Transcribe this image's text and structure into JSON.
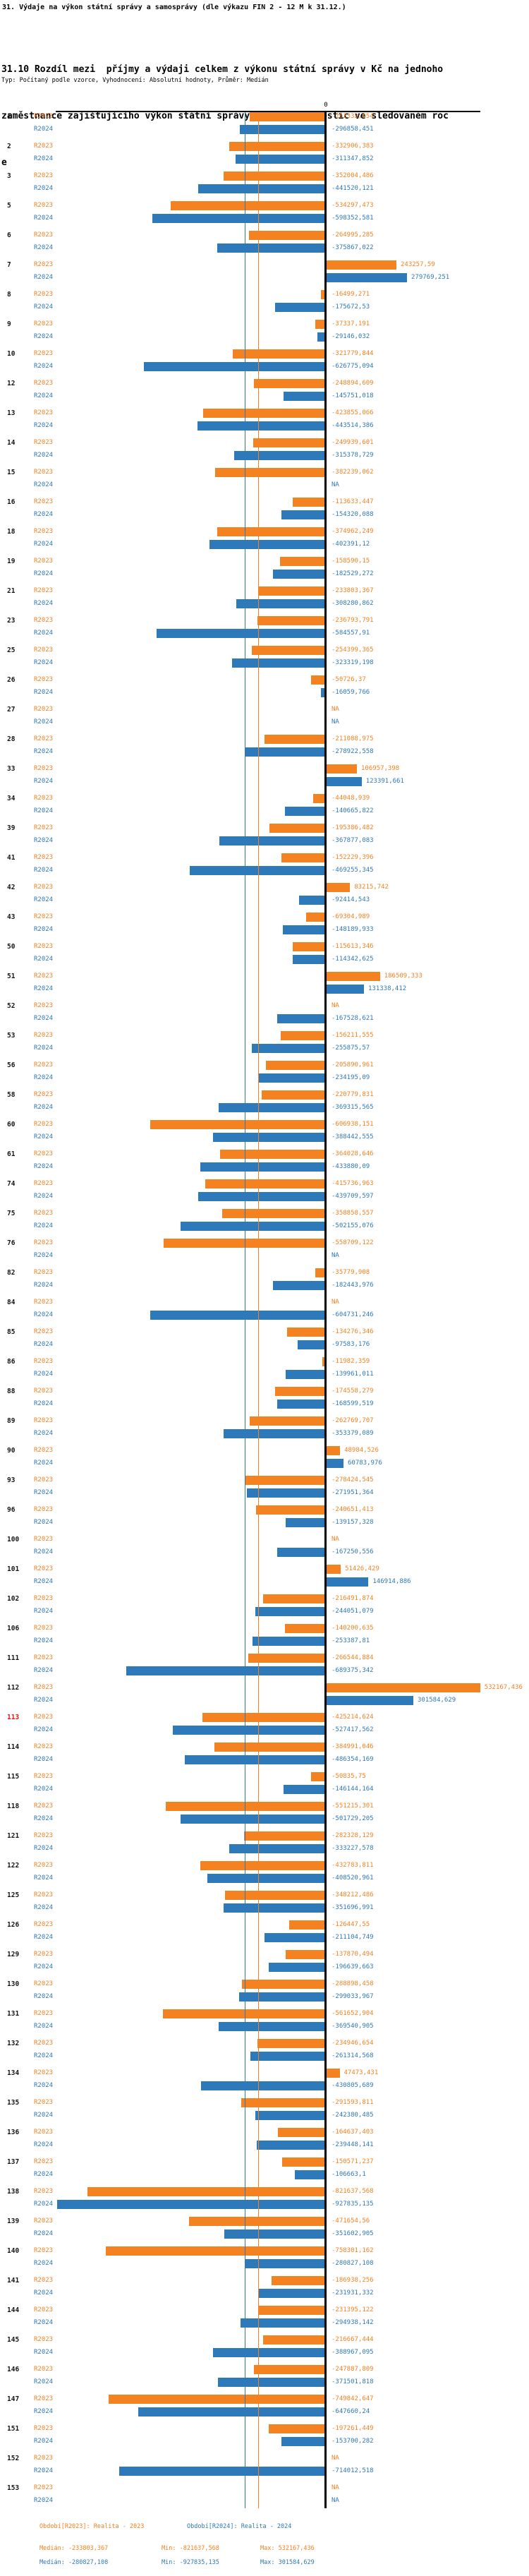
{
  "title": "31. Výdaje na výkon státní správy a samosprávy (dle výkazu FIN 2 - 12 M k 31.12.)",
  "subtitle_lines": [
    "31.10 Rozdíl mezi  příjmy a výdaji celkem z výkonu státní správy v Kč na jednoho",
    "zaměstnance zajišťujícího výkon státní správy - včetně investic ve sledovaném roc",
    "e"
  ],
  "meta_line": "Typ: Počítaný podle vzorce, Vyhodnocení: Absolutní hodnoty, Průměr: Medián",
  "axis": {
    "zero_label": "0"
  },
  "colors": {
    "r2023": "#F58220",
    "r2024": "#2E79B9",
    "highlight_row": "#EE1111",
    "axis": "#000000"
  },
  "chart_data": {
    "type": "bar",
    "orientation": "horizontal",
    "unit": "Kč",
    "na_label": "NA",
    "highlighted_row_id": "113",
    "series": [
      {
        "key": "r2023",
        "label": "R2023",
        "period": "Realita - 2023"
      },
      {
        "key": "r2024",
        "label": "R2024",
        "period": "Realita - 2024"
      }
    ],
    "reference_lines": [
      {
        "series": "r2024",
        "type": "median",
        "value": -280827.108
      },
      {
        "series": "r2023",
        "type": "median",
        "value": -233803.367
      }
    ],
    "stats": {
      "r2023": {
        "median": -233803.367,
        "min": -821637.568,
        "max": 532167.436
      },
      "r2024": {
        "median": -280827.108,
        "min": -927835.135,
        "max": 301584.629
      }
    },
    "rows": [
      {
        "id": "1",
        "r2023": -263332.454,
        "r2024": -296858.451
      },
      {
        "id": "2",
        "r2023": -332906.383,
        "r2024": -311347.852
      },
      {
        "id": "3",
        "r2023": -352004.486,
        "r2024": -441520.121
      },
      {
        "id": "5",
        "r2023": -534297.473,
        "r2024": -598352.581
      },
      {
        "id": "6",
        "r2023": -264995.285,
        "r2024": -375867.022
      },
      {
        "id": "7",
        "r2023": 243257.59,
        "r2024": 279769.251
      },
      {
        "id": "8",
        "r2023": -16499.271,
        "r2024": -175672.53
      },
      {
        "id": "9",
        "r2023": -37337.191,
        "r2024": -29146.032
      },
      {
        "id": "10",
        "r2023": -321779.844,
        "r2024": -626775.094
      },
      {
        "id": "12",
        "r2023": -248894.609,
        "r2024": -145751.018
      },
      {
        "id": "13",
        "r2023": -423855.066,
        "r2024": -443514.386
      },
      {
        "id": "14",
        "r2023": -249939.601,
        "r2024": -315378.729
      },
      {
        "id": "15",
        "r2023": -382239.062,
        "r2024": null
      },
      {
        "id": "16",
        "r2023": -113633.447,
        "r2024": -154320.088
      },
      {
        "id": "18",
        "r2023": -374962.249,
        "r2024": -402391.12
      },
      {
        "id": "19",
        "r2023": -158590.15,
        "r2024": -182529.272
      },
      {
        "id": "21",
        "r2023": -233803.367,
        "r2024": -308280.862
      },
      {
        "id": "23",
        "r2023": -236793.791,
        "r2024": -584557.91
      },
      {
        "id": "25",
        "r2023": -254399.365,
        "r2024": -323319.198
      },
      {
        "id": "26",
        "r2023": -50726.37,
        "r2024": -16059.766
      },
      {
        "id": "27",
        "r2023": null,
        "r2024": null
      },
      {
        "id": "28",
        "r2023": -211088.975,
        "r2024": -278922.558
      },
      {
        "id": "33",
        "r2023": 106957.398,
        "r2024": 123391.661
      },
      {
        "id": "34",
        "r2023": -44048.939,
        "r2024": -140665.822
      },
      {
        "id": "39",
        "r2023": -195386.482,
        "r2024": -367877.083
      },
      {
        "id": "41",
        "r2023": -152229.396,
        "r2024": -469255.345
      },
      {
        "id": "42",
        "r2023": 83215.742,
        "r2024": -92414.543
      },
      {
        "id": "43",
        "r2023": -69304.989,
        "r2024": -148189.933
      },
      {
        "id": "50",
        "r2023": -115613.346,
        "r2024": -114342.625
      },
      {
        "id": "51",
        "r2023": 186509.333,
        "r2024": 131338.412
      },
      {
        "id": "52",
        "r2023": null,
        "r2024": -167528.621
      },
      {
        "id": "53",
        "r2023": -156211.555,
        "r2024": -255875.57
      },
      {
        "id": "56",
        "r2023": -205890.961,
        "r2024": -234195.09
      },
      {
        "id": "58",
        "r2023": -220779.831,
        "r2024": -369315.565
      },
      {
        "id": "60",
        "r2023": -606938.151,
        "r2024": -388442.555
      },
      {
        "id": "61",
        "r2023": -364028.646,
        "r2024": -433880.09
      },
      {
        "id": "74",
        "r2023": -415736.963,
        "r2024": -439709.597
      },
      {
        "id": "75",
        "r2023": -358858.557,
        "r2024": -502155.076
      },
      {
        "id": "76",
        "r2023": -558709.122,
        "r2024": null
      },
      {
        "id": "82",
        "r2023": -35779.908,
        "r2024": -182443.976
      },
      {
        "id": "84",
        "r2023": null,
        "r2024": -604731.246
      },
      {
        "id": "85",
        "r2023": -134276.346,
        "r2024": -97583.176
      },
      {
        "id": "86",
        "r2023": -11982.359,
        "r2024": -139961.011
      },
      {
        "id": "88",
        "r2023": -174558.279,
        "r2024": -168599.519
      },
      {
        "id": "89",
        "r2023": -262769.707,
        "r2024": -353379.089
      },
      {
        "id": "90",
        "r2023": 48984.526,
        "r2024": 60783.976
      },
      {
        "id": "93",
        "r2023": -278424.545,
        "r2024": -271951.364
      },
      {
        "id": "96",
        "r2023": -240651.413,
        "r2024": -139157.328
      },
      {
        "id": "100",
        "r2023": null,
        "r2024": -167250.556
      },
      {
        "id": "101",
        "r2023": 51426.429,
        "r2024": 146914.886
      },
      {
        "id": "102",
        "r2023": -216491.874,
        "r2024": -244051.079
      },
      {
        "id": "106",
        "r2023": -140200.635,
        "r2024": -253387.81
      },
      {
        "id": "111",
        "r2023": -266544.884,
        "r2024": -689375.342
      },
      {
        "id": "112",
        "r2023": 532167.436,
        "r2024": 301584.629
      },
      {
        "id": "113",
        "r2023": -425214.624,
        "r2024": -527417.562
      },
      {
        "id": "114",
        "r2023": -384991.046,
        "r2024": -486354.169
      },
      {
        "id": "115",
        "r2023": -50835.75,
        "r2024": -146144.164
      },
      {
        "id": "118",
        "r2023": -551215.301,
        "r2024": -501729.205
      },
      {
        "id": "121",
        "r2023": -282328.129,
        "r2024": -333227.578
      },
      {
        "id": "122",
        "r2023": -432783.811,
        "r2024": -408520.961
      },
      {
        "id": "125",
        "r2023": -348212.486,
        "r2024": -351696.991
      },
      {
        "id": "126",
        "r2023": -126447.55,
        "r2024": -211104.749
      },
      {
        "id": "129",
        "r2023": -137870.494,
        "r2024": -196639.663
      },
      {
        "id": "130",
        "r2023": -288898.458,
        "r2024": -299033.967
      },
      {
        "id": "131",
        "r2023": -561652.904,
        "r2024": -369540.905
      },
      {
        "id": "132",
        "r2023": -234946.654,
        "r2024": -261314.568
      },
      {
        "id": "134",
        "r2023": 47473.431,
        "r2024": -430805.689
      },
      {
        "id": "135",
        "r2023": -291593.811,
        "r2024": -242380.485
      },
      {
        "id": "136",
        "r2023": -164637.403,
        "r2024": -239448.141
      },
      {
        "id": "137",
        "r2023": -150571.237,
        "r2024": -106663.1
      },
      {
        "id": "138",
        "r2023": -821637.568,
        "r2024": -927835.135
      },
      {
        "id": "139",
        "r2023": -471654.56,
        "r2024": -351602.905
      },
      {
        "id": "140",
        "r2023": -758301.162,
        "r2024": -280827.108
      },
      {
        "id": "141",
        "r2023": -186938.256,
        "r2024": -231931.332
      },
      {
        "id": "144",
        "r2023": -231395.122,
        "r2024": -294938.142
      },
      {
        "id": "145",
        "r2023": -216667.444,
        "r2024": -388967.095
      },
      {
        "id": "146",
        "r2023": -247887.809,
        "r2024": -371501.818
      },
      {
        "id": "147",
        "r2023": -749842.647,
        "r2024": -647660.24
      },
      {
        "id": "151",
        "r2023": -197261.449,
        "r2024": -153700.282
      },
      {
        "id": "152",
        "r2023": null,
        "r2024": -714012.518
      },
      {
        "id": "153",
        "r2023": null,
        "r2024": null
      }
    ]
  },
  "footer": {
    "period_r2023": "Období[R2023]: Realita - 2023",
    "period_r2024": "Období[R2024]: Realita - 2024",
    "stats_r2023": {
      "median": "Medián: -233803,367",
      "min": "Min: -821637,568",
      "max": "Max: 532167,436"
    },
    "stats_r2024": {
      "median": "Medián: -280827,108",
      "min": "Min: -927835,135",
      "max": "Max: 301584,629"
    }
  }
}
